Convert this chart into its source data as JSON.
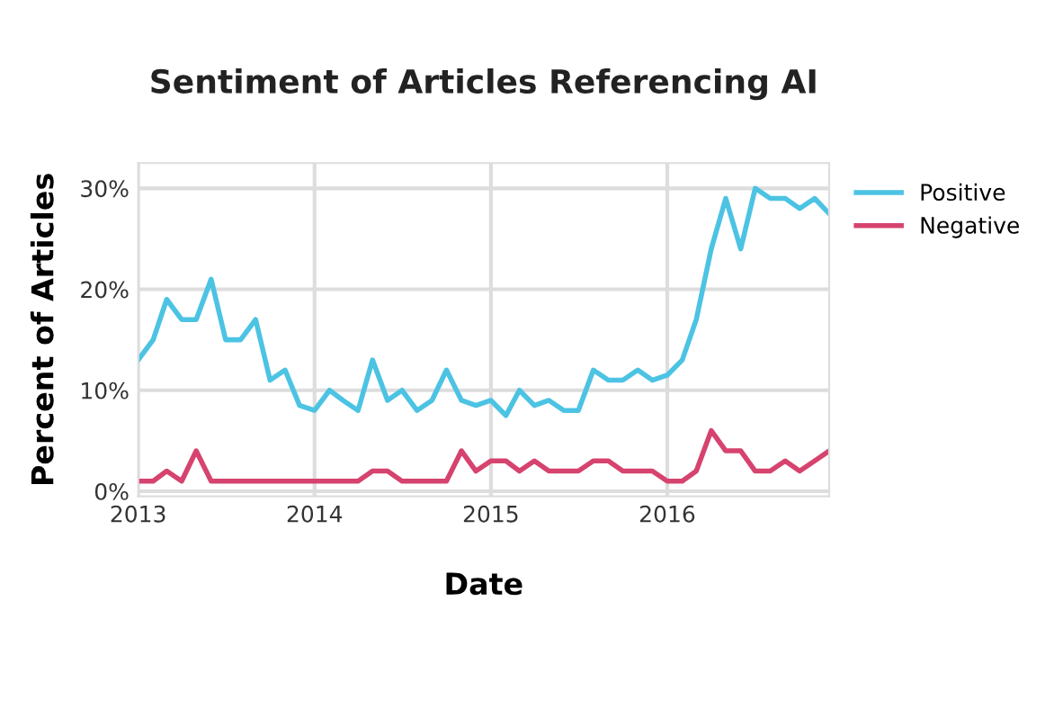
{
  "chart_data": {
    "type": "line",
    "title": "Sentiment of Articles Referencing AI",
    "xlabel": "Date",
    "ylabel": "Percent of Articles",
    "x": [
      "2013-01",
      "2013-02",
      "2013-03",
      "2013-04",
      "2013-05",
      "2013-06",
      "2013-07",
      "2013-08",
      "2013-09",
      "2013-10",
      "2013-11",
      "2013-12",
      "2014-01",
      "2014-02",
      "2014-03",
      "2014-04",
      "2014-05",
      "2014-06",
      "2014-07",
      "2014-08",
      "2014-09",
      "2014-10",
      "2014-11",
      "2014-12",
      "2015-01",
      "2015-02",
      "2015-03",
      "2015-04",
      "2015-05",
      "2015-06",
      "2015-07",
      "2015-08",
      "2015-09",
      "2015-10",
      "2015-11",
      "2015-12",
      "2016-01",
      "2016-02",
      "2016-03",
      "2016-04",
      "2016-05",
      "2016-06",
      "2016-07",
      "2016-08",
      "2016-09",
      "2016-10",
      "2016-11",
      "2016-12"
    ],
    "series": [
      {
        "name": "Positive",
        "color": "#4cc3e3",
        "values": [
          13,
          15,
          19,
          17,
          17,
          21,
          15,
          15,
          17,
          11,
          12,
          8.5,
          8,
          10,
          9,
          8,
          13,
          9,
          10,
          8,
          9,
          12,
          9,
          8.5,
          9,
          7.5,
          10,
          8.5,
          9,
          8,
          8,
          12,
          11,
          11,
          12,
          11,
          11.5,
          13,
          17,
          24,
          29,
          24,
          30,
          29,
          29,
          28,
          29,
          27.5
        ]
      },
      {
        "name": "Negative",
        "color": "#d6436e",
        "values": [
          1,
          1,
          2,
          1,
          4,
          1,
          1,
          1,
          1,
          1,
          1,
          1,
          1,
          1,
          1,
          1,
          2,
          2,
          1,
          1,
          1,
          1,
          4,
          2,
          3,
          3,
          2,
          3,
          2,
          2,
          2,
          3,
          3,
          2,
          2,
          2,
          1,
          1,
          2,
          6,
          4,
          4,
          2,
          2,
          3,
          2,
          3,
          4
        ]
      }
    ],
    "xlim": [
      "2013-01",
      "2016-12"
    ],
    "xticks": [
      {
        "value": "2013-01",
        "label": "2013"
      },
      {
        "value": "2014-01",
        "label": "2014"
      },
      {
        "value": "2015-01",
        "label": "2015"
      },
      {
        "value": "2016-01",
        "label": "2016"
      }
    ],
    "ylim": [
      -0.5,
      32.5
    ],
    "yticks": [
      {
        "value": 0,
        "label": "0%"
      },
      {
        "value": 10,
        "label": "10%"
      },
      {
        "value": 20,
        "label": "20%"
      },
      {
        "value": 30,
        "label": "30%"
      }
    ],
    "grid": true,
    "legend": "top right",
    "marker": "none",
    "line_style": "solid"
  }
}
